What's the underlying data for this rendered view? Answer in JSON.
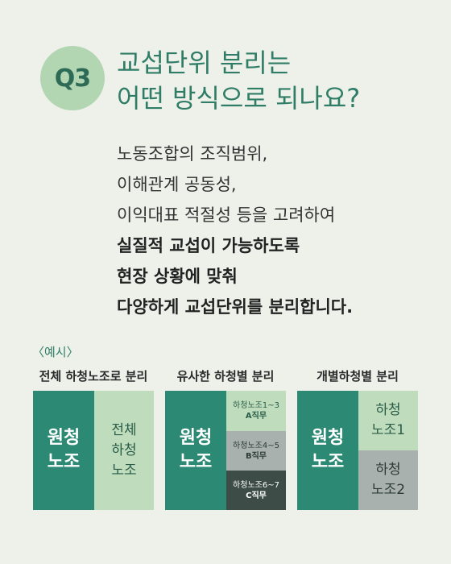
{
  "badge": "Q3",
  "title": {
    "line1": "교섭단위 분리는",
    "line2": "어떤 방식으로 되나요?"
  },
  "body": {
    "line1": "노동조합의 조직범위,",
    "line2": "이해관계 공동성,",
    "line3": "이익대표 적절성 등을 고려하여",
    "bold1": "실질적 교섭이 가능하도록",
    "bold2": "현장 상황에 맞춰",
    "bold3": "다양하게 교섭단위를 분리합니다."
  },
  "example_label": "〈예시〉",
  "diagrams": [
    {
      "title": "전체 하청노조로 분리",
      "left": [
        "원청",
        "노조"
      ],
      "right": [
        "전체",
        "하청",
        "노조"
      ]
    },
    {
      "title": "유사한 하청별 분리",
      "left": [
        "원청",
        "노조"
      ],
      "parts": [
        {
          "line1": "하청노조1~3",
          "line2": "A직무"
        },
        {
          "line1": "하청노조4~5",
          "line2": "B직무"
        },
        {
          "line1": "하청노조6~7",
          "line2": "C직무"
        }
      ]
    },
    {
      "title": "개별하청별 분리",
      "left": [
        "원청",
        "노조"
      ],
      "parts": [
        {
          "line1": "하청",
          "line2": "노조1"
        },
        {
          "line1": "하청",
          "line2": "노조2"
        }
      ]
    }
  ],
  "colors": {
    "background": "#eef1ea",
    "accent": "#2f7d67",
    "badge": "#b3d6b2",
    "dark_green": "#2c8a74",
    "light_green": "#bfdcbd",
    "gray": "#a8b1ae",
    "dark_gray": "#3d4c47"
  }
}
